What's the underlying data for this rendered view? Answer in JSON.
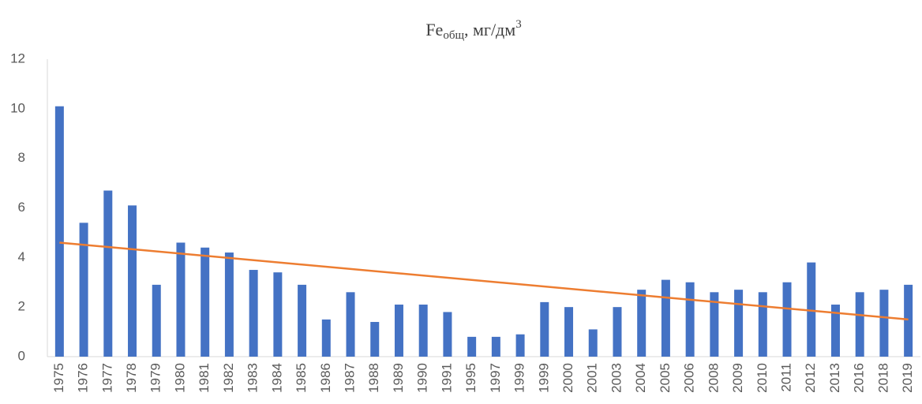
{
  "chart_data": {
    "type": "bar",
    "title": {
      "text": "Fe",
      "subscript": "общ",
      "unit": ", мг/дм",
      "superscript": "3"
    },
    "categories": [
      "1975",
      "1976",
      "1977",
      "1978",
      "1979",
      "1980",
      "1981",
      "1982",
      "1983",
      "1984",
      "1985",
      "1986",
      "1987",
      "1988",
      "1989",
      "1990",
      "1991",
      "1995",
      "1997",
      "1999",
      "1999",
      "2000",
      "2001",
      "2003",
      "2004",
      "2005",
      "2006",
      "2008",
      "2009",
      "2010",
      "2011",
      "2012",
      "2013",
      "2016",
      "2018",
      "2019"
    ],
    "values": [
      10.1,
      5.4,
      6.7,
      6.1,
      2.9,
      4.6,
      4.4,
      4.2,
      3.5,
      3.4,
      2.9,
      1.5,
      2.6,
      1.4,
      2.1,
      2.1,
      1.8,
      0.8,
      0.8,
      0.9,
      2.2,
      2.0,
      1.1,
      2.0,
      2.7,
      3.1,
      3.0,
      2.6,
      2.7,
      2.6,
      3.0,
      3.8,
      2.1,
      2.6,
      2.7,
      2.9
    ],
    "color": "#4472c4",
    "trend": {
      "color": "#ed7d31",
      "values": [
        4.6,
        1.5
      ]
    },
    "ylim": [
      0,
      12
    ],
    "yticks": [
      0,
      2,
      4,
      6,
      8,
      10,
      12
    ],
    "grid": false
  }
}
